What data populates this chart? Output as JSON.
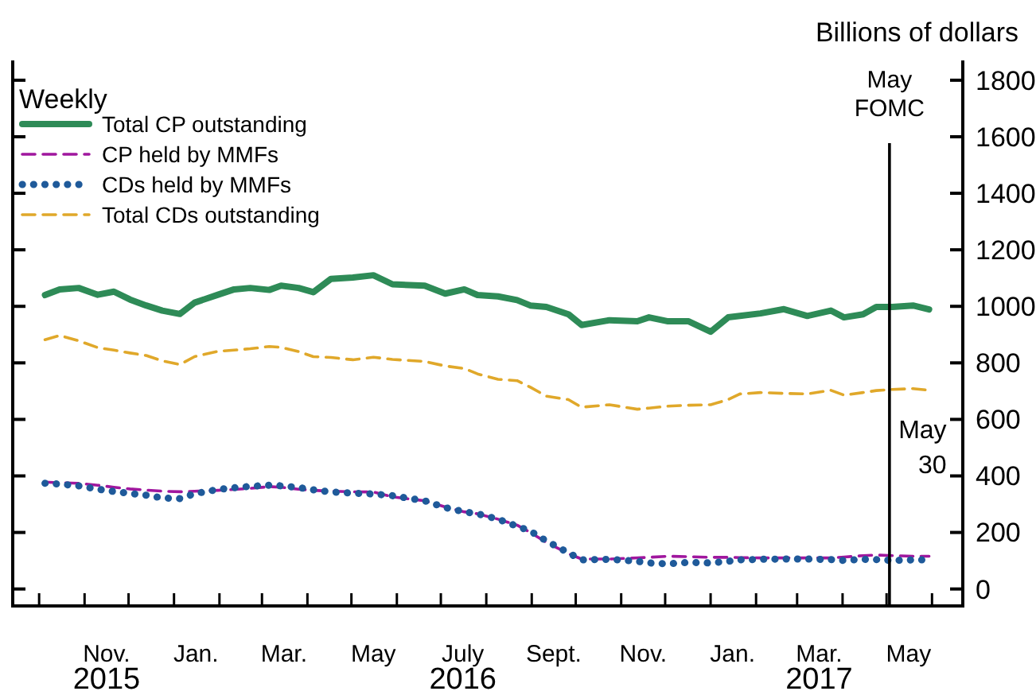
{
  "chart_data": {
    "type": "line",
    "ylabel": "Billions of dollars",
    "legend_title": "Weekly",
    "legend": "top left",
    "grid": false,
    "x": [
      "2015-10-05",
      "2015-10-15",
      "2015-10-28",
      "2015-11-10",
      "2015-11-21",
      "2015-12-02",
      "2015-12-13",
      "2015-12-24",
      "2016-01-05",
      "2016-01-15",
      "2016-01-31",
      "2016-02-11",
      "2016-02-22",
      "2016-03-06",
      "2016-03-14",
      "2016-03-26",
      "2016-04-05",
      "2016-04-17",
      "2016-05-02",
      "2016-05-16",
      "2016-05-29",
      "2016-06-20",
      "2016-07-04",
      "2016-07-17",
      "2016-07-26",
      "2016-08-09",
      "2016-08-22",
      "2016-08-31",
      "2016-09-11",
      "2016-09-26",
      "2016-10-05",
      "2016-10-24",
      "2016-11-12",
      "2016-11-20",
      "2016-12-03",
      "2016-12-17",
      "2017-01-01",
      "2017-01-13",
      "2017-01-21",
      "2017-02-04",
      "2017-02-20",
      "2017-03-08",
      "2017-03-24",
      "2017-04-02",
      "2017-04-15",
      "2017-04-24",
      "2017-05-05",
      "2017-05-19",
      "2017-05-30"
    ],
    "series": [
      {
        "name": "Total CP outstanding",
        "color": "#2e8b57",
        "line_style": "solid",
        "values": [
          1040,
          1060,
          1065,
          1041,
          1052,
          1024,
          1003,
          985,
          973,
          1013,
          1041,
          1060,
          1065,
          1058,
          1073,
          1065,
          1050,
          1097,
          1102,
          1110,
          1078,
          1073,
          1045,
          1060,
          1040,
          1035,
          1022,
          1003,
          998,
          972,
          934,
          951,
          947,
          961,
          947,
          947,
          910,
          961,
          966,
          975,
          990,
          966,
          985,
          961,
          972,
          998,
          998,
          1003,
          989
        ]
      },
      {
        "name": "CP held by MMFs",
        "color": "#a0179e",
        "line_style": "dashed",
        "values": [
          378,
          376,
          374,
          367,
          360,
          354,
          350,
          346,
          344,
          346,
          349,
          352,
          356,
          362,
          360,
          353,
          349,
          346,
          344,
          343,
          326,
          312,
          290,
          273,
          266,
          247,
          226,
          200,
          165,
          125,
          106,
          106,
          110,
          112,
          116,
          114,
          112,
          112,
          111,
          110,
          110,
          110,
          110,
          113,
          118,
          120,
          118,
          116,
          116
        ]
      },
      {
        "name": "CDs held by MMFs",
        "color": "#1f5a9a",
        "line_style": "dotted",
        "values": [
          374,
          371,
          365,
          353,
          345,
          338,
          332,
          322,
          320,
          337,
          352,
          358,
          363,
          367,
          365,
          359,
          351,
          343,
          339,
          336,
          330,
          312,
          288,
          273,
          266,
          247,
          222,
          205,
          170,
          128,
          103,
          105,
          98,
          92,
          89,
          94,
          92,
          98,
          103,
          105,
          106,
          106,
          104,
          101,
          105,
          104,
          101,
          103,
          103
        ]
      },
      {
        "name": "Total CDs outstanding",
        "color": "#e0a82a",
        "line_style": "dashed",
        "values": [
          882,
          897,
          878,
          854,
          845,
          835,
          826,
          807,
          794,
          822,
          841,
          845,
          850,
          858,
          855,
          840,
          822,
          819,
          811,
          820,
          812,
          805,
          789,
          780,
          761,
          742,
          737,
          714,
          682,
          670,
          643,
          652,
          636,
          640,
          647,
          650,
          652,
          670,
          690,
          695,
          692,
          690,
          703,
          686,
          695,
          702,
          706,
          709,
          703
        ]
      }
    ],
    "xlim": [
      "2015-09-13",
      "2017-06-22"
    ],
    "xticks": [
      {
        "value": "2015-10-01",
        "label": null
      },
      {
        "value": "2015-11-01",
        "label": null
      },
      {
        "value": "2015-11-16",
        "label": "Nov.\n2015"
      },
      {
        "value": "2015-12-01",
        "label": null
      },
      {
        "value": "2016-01-01",
        "label": null
      },
      {
        "value": "2016-01-16",
        "label": "Jan."
      },
      {
        "value": "2016-02-01",
        "label": null
      },
      {
        "value": "2016-03-01",
        "label": null
      },
      {
        "value": "2016-03-16",
        "label": "Mar."
      },
      {
        "value": "2016-04-01",
        "label": null
      },
      {
        "value": "2016-05-01",
        "label": null
      },
      {
        "value": "2016-05-16",
        "label": "May"
      },
      {
        "value": "2016-06-01",
        "label": null
      },
      {
        "value": "2016-07-01",
        "label": null
      },
      {
        "value": "2016-07-16",
        "label": "July\n2016"
      },
      {
        "value": "2016-08-01",
        "label": null
      },
      {
        "value": "2016-09-01",
        "label": null
      },
      {
        "value": "2016-09-16",
        "label": "Sept."
      },
      {
        "value": "2016-10-01",
        "label": null
      },
      {
        "value": "2016-11-01",
        "label": null
      },
      {
        "value": "2016-11-16",
        "label": "Nov."
      },
      {
        "value": "2016-12-01",
        "label": null
      },
      {
        "value": "2017-01-01",
        "label": null
      },
      {
        "value": "2017-01-16",
        "label": "Jan."
      },
      {
        "value": "2017-02-01",
        "label": null
      },
      {
        "value": "2017-03-01",
        "label": null
      },
      {
        "value": "2017-03-16",
        "label": "Mar.\n2017"
      },
      {
        "value": "2017-04-01",
        "label": null
      },
      {
        "value": "2017-05-01",
        "label": null
      },
      {
        "value": "2017-05-16",
        "label": "May"
      },
      {
        "value": "2017-06-01",
        "label": null
      }
    ],
    "ylim": [
      -60,
      1870
    ],
    "yticks": [
      0,
      200,
      400,
      600,
      800,
      1000,
      1200,
      1400,
      1600,
      1800
    ],
    "ref_lines": [
      {
        "axis": "x",
        "value": "2017-05-03",
        "label": "May\nFOMC",
        "color": "#000000"
      }
    ],
    "annotations": [
      {
        "text": "May\n30",
        "x": "2017-05-30",
        "y": 703
      }
    ]
  }
}
